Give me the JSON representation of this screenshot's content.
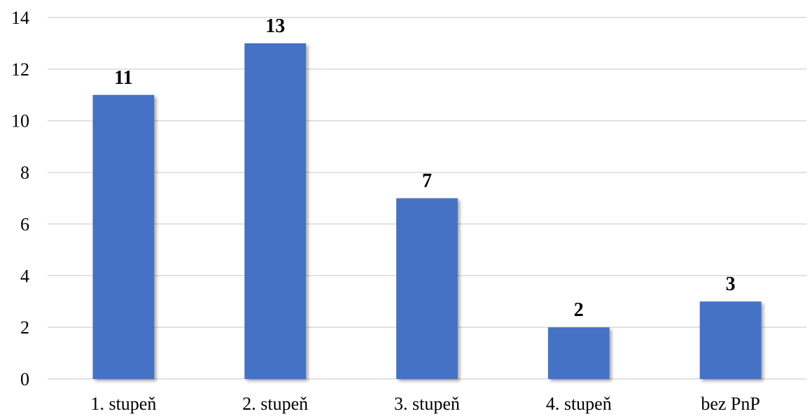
{
  "chart_data": {
    "type": "bar",
    "categories": [
      "1. stupeň",
      "2. stupeň",
      "3. stupeň",
      "4. stupeň",
      "bez PnP"
    ],
    "values": [
      11,
      13,
      7,
      2,
      3
    ],
    "data_labels": [
      "11",
      "13",
      "7",
      "2",
      "3"
    ],
    "yticks": [
      "0",
      "2",
      "4",
      "6",
      "8",
      "10",
      "12",
      "14"
    ],
    "ylim": [
      0,
      14
    ],
    "grid": true,
    "bar_color": "#4472C4",
    "grid_color": "#D9D9D9"
  }
}
